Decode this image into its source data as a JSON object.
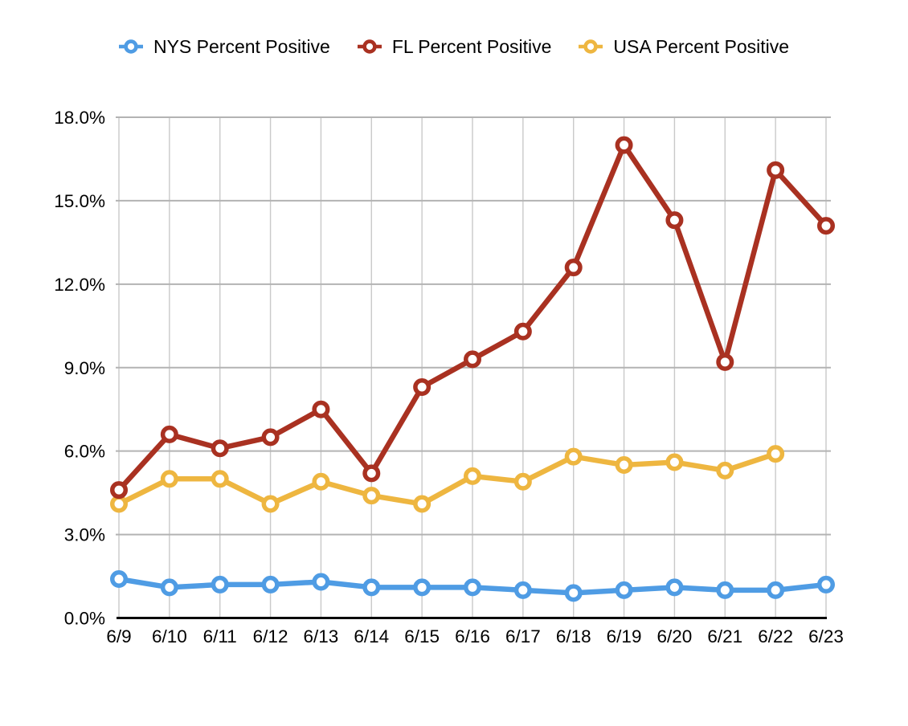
{
  "chart_data": {
    "type": "line",
    "title": "",
    "xlabel": "",
    "ylabel": "",
    "x": [
      "6/9",
      "6/10",
      "6/11",
      "6/12",
      "6/13",
      "6/14",
      "6/15",
      "6/16",
      "6/17",
      "6/18",
      "6/19",
      "6/20",
      "6/21",
      "6/22",
      "6/23"
    ],
    "series": [
      {
        "name": "NYS Percent Positive",
        "color": "#4f9ce4",
        "values": [
          1.4,
          1.1,
          1.2,
          1.2,
          1.3,
          1.1,
          1.1,
          1.1,
          1.0,
          0.9,
          1.0,
          1.1,
          1.0,
          1.0,
          1.2
        ]
      },
      {
        "name": "FL Percent Positive",
        "color": "#a93121",
        "values": [
          4.6,
          6.6,
          6.1,
          6.5,
          7.5,
          5.2,
          8.3,
          9.3,
          10.3,
          12.6,
          17.0,
          14.3,
          9.2,
          16.1,
          14.1
        ]
      },
      {
        "name": "USA Percent Positive",
        "color": "#eeb640",
        "values": [
          4.1,
          5.0,
          5.0,
          4.1,
          4.9,
          4.4,
          4.1,
          5.1,
          4.9,
          5.8,
          5.5,
          5.6,
          5.3,
          5.9,
          null
        ]
      }
    ],
    "ylim": [
      0,
      18
    ],
    "ytick_step": 3,
    "ytick_labels": [
      "0.0%",
      "3.0%",
      "6.0%",
      "9.0%",
      "12.0%",
      "15.0%",
      "18.0%"
    ],
    "grid": true,
    "legend_position": "top"
  }
}
